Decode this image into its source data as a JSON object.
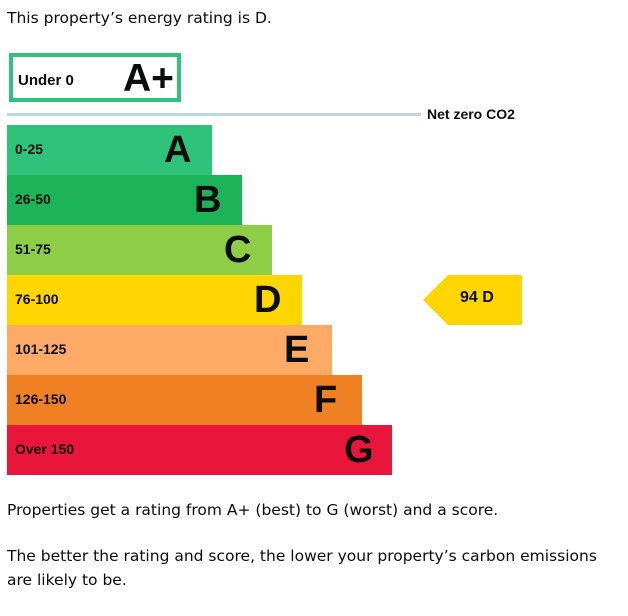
{
  "intro_text": "This property’s energy rating is D.",
  "chart_data": {
    "type": "bar",
    "top_band": {
      "range": "Under 0",
      "letter": "A+",
      "color": "#2fc27b"
    },
    "net_zero_label": "Net zero CO2",
    "net_zero_line_color": "#bcd7e1",
    "bands": [
      {
        "range": "0-25",
        "letter": "A",
        "color": "#2fc27b"
      },
      {
        "range": "26-50",
        "letter": "B",
        "color": "#1db459"
      },
      {
        "range": "51-75",
        "letter": "C",
        "color": "#8dce46"
      },
      {
        "range": "76-100",
        "letter": "D",
        "color": "#ffd500"
      },
      {
        "range": "101-125",
        "letter": "E",
        "color": "#fcaa65"
      },
      {
        "range": "126-150",
        "letter": "F",
        "color": "#ef8023"
      },
      {
        "range": "Over 150",
        "letter": "G",
        "color": "#e9153b"
      }
    ],
    "current": {
      "score": 94,
      "letter": "D",
      "label": "94  D",
      "color": "#ffd500"
    }
  },
  "para1": "Properties get a rating from A+ (best) to G (worst) and a score.",
  "para2": "The better the rating and score, the lower your property’s carbon emissions are likely to be."
}
